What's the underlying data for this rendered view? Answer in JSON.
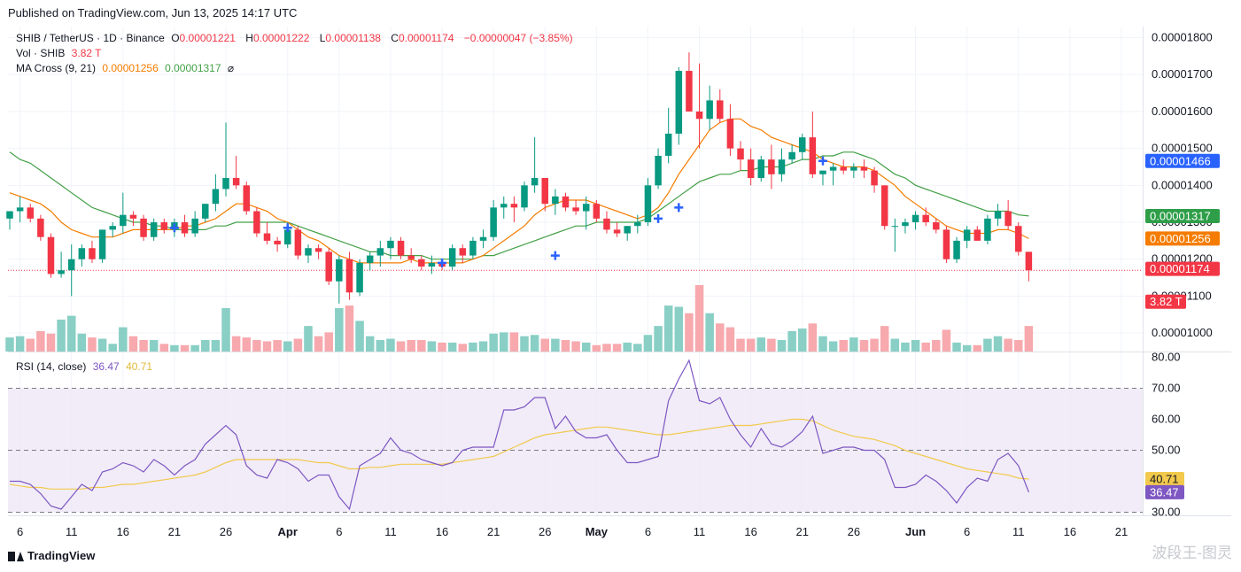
{
  "header": {
    "published": "Published on TradingView.com, Jun 13, 2025 14:17 UTC"
  },
  "legend": {
    "symbol": "SHIB / TetherUS · 1D · Binance",
    "o_label": "O",
    "o_value": "0.00001221",
    "h_label": "H",
    "h_value": "0.00001222",
    "l_label": "L",
    "l_value": "0.00001138",
    "c_label": "C",
    "c_value": "0.00001174",
    "change": "−0.00000047 (−3.85%)",
    "vol_label": "Vol · SHIB",
    "vol_value": "3.82 T",
    "ma_label": "MA Cross (9, 21)",
    "ma_fast": "0.00001256",
    "ma_slow": "0.00001317",
    "ma_symbol": "⌀",
    "rsi_label": "RSI (14, close)",
    "rsi_value": "36.47",
    "rsi_ma_value": "40.71"
  },
  "footer": {
    "logo_text": "TradingView",
    "watermark": "波段王-图灵"
  },
  "colors": {
    "up": "#089981",
    "down": "#f23645",
    "ma_fast": "#f57c00",
    "ma_slow": "#43a047",
    "cross": "#2962ff",
    "rsi": "#7e57c2",
    "rsi_ma": "#f2c94c",
    "rsi_band": "#ede7f6",
    "price_badge": "#f23645",
    "last_ma_slow_badge": "#2e9e48",
    "last_ma_fast_badge": "#f57c00",
    "mark_badge": "#2962ff"
  },
  "chart_data": {
    "type": "candlestick",
    "price_axis": {
      "ticks": [
        "0.00001000",
        "0.00001100",
        "0.00001200",
        "0.00001300",
        "0.00001400",
        "0.00001500",
        "0.00001600",
        "0.00001700",
        "0.00001800"
      ],
      "tick_values": [
        1.0,
        1.1,
        1.2,
        1.3,
        1.4,
        1.5,
        1.6,
        1.7,
        1.8
      ],
      "unit_scale": "1e-5",
      "range": [
        0.95,
        1.83
      ]
    },
    "rsi_axis": {
      "ticks": [
        "30.00",
        "40.00",
        "50.00",
        "60.00",
        "70.00",
        "80.00"
      ],
      "tick_values": [
        30,
        40,
        50,
        60,
        70,
        80
      ],
      "range": [
        29,
        81
      ],
      "band": [
        30,
        70
      ]
    },
    "badges": [
      {
        "label": "0.00001466",
        "value": 1.466,
        "kind": "mark"
      },
      {
        "label": "0.00001317",
        "value": 1.317,
        "kind": "ma_slow"
      },
      {
        "label": "0.00001256",
        "value": 1.256,
        "kind": "ma_fast"
      },
      {
        "label": "0.00001174",
        "value": 1.174,
        "kind": "price"
      },
      {
        "label": "3.82 T",
        "value": 1.085,
        "kind": "volume"
      }
    ],
    "rsi_badges": [
      {
        "label": "40.71",
        "value": 40.71,
        "kind": "rsi_ma"
      },
      {
        "label": "36.47",
        "value": 36.47,
        "kind": "rsi"
      }
    ],
    "x_ticks": [
      {
        "label": "6",
        "i": 1
      },
      {
        "label": "11",
        "i": 6
      },
      {
        "label": "16",
        "i": 11
      },
      {
        "label": "21",
        "i": 16
      },
      {
        "label": "26",
        "i": 21
      },
      {
        "label": "Apr",
        "i": 27,
        "bold": true
      },
      {
        "label": "6",
        "i": 32
      },
      {
        "label": "11",
        "i": 37
      },
      {
        "label": "16",
        "i": 42
      },
      {
        "label": "21",
        "i": 47
      },
      {
        "label": "26",
        "i": 52
      },
      {
        "label": "May",
        "i": 57,
        "bold": true
      },
      {
        "label": "6",
        "i": 62
      },
      {
        "label": "11",
        "i": 67
      },
      {
        "label": "16",
        "i": 72
      },
      {
        "label": "21",
        "i": 77
      },
      {
        "label": "26",
        "i": 82
      },
      {
        "label": "Jun",
        "i": 88,
        "bold": true
      },
      {
        "label": "6",
        "i": 93
      },
      {
        "label": "11",
        "i": 98
      },
      {
        "label": "16",
        "i": 103
      },
      {
        "label": "21",
        "i": 108
      }
    ],
    "ohlc": [
      [
        1.31,
        1.33,
        1.28,
        1.33
      ],
      [
        1.33,
        1.37,
        1.3,
        1.34
      ],
      [
        1.34,
        1.35,
        1.3,
        1.31
      ],
      [
        1.31,
        1.32,
        1.25,
        1.26
      ],
      [
        1.26,
        1.27,
        1.15,
        1.16
      ],
      [
        1.16,
        1.22,
        1.15,
        1.17
      ],
      [
        1.17,
        1.24,
        1.1,
        1.2
      ],
      [
        1.2,
        1.24,
        1.18,
        1.23
      ],
      [
        1.23,
        1.25,
        1.19,
        1.2
      ],
      [
        1.2,
        1.28,
        1.19,
        1.28
      ],
      [
        1.28,
        1.3,
        1.26,
        1.29
      ],
      [
        1.29,
        1.38,
        1.27,
        1.32
      ],
      [
        1.32,
        1.33,
        1.29,
        1.31
      ],
      [
        1.31,
        1.32,
        1.25,
        1.26
      ],
      [
        1.26,
        1.31,
        1.25,
        1.3
      ],
      [
        1.3,
        1.31,
        1.27,
        1.28
      ],
      [
        1.28,
        1.31,
        1.26,
        1.3
      ],
      [
        1.3,
        1.32,
        1.26,
        1.27
      ],
      [
        1.27,
        1.33,
        1.26,
        1.31
      ],
      [
        1.31,
        1.35,
        1.3,
        1.35
      ],
      [
        1.35,
        1.43,
        1.33,
        1.39
      ],
      [
        1.39,
        1.57,
        1.37,
        1.42
      ],
      [
        1.42,
        1.48,
        1.39,
        1.4
      ],
      [
        1.4,
        1.41,
        1.32,
        1.33
      ],
      [
        1.33,
        1.34,
        1.26,
        1.27
      ],
      [
        1.27,
        1.3,
        1.24,
        1.25
      ],
      [
        1.25,
        1.26,
        1.22,
        1.24
      ],
      [
        1.24,
        1.3,
        1.23,
        1.28
      ],
      [
        1.28,
        1.29,
        1.2,
        1.21
      ],
      [
        1.21,
        1.24,
        1.19,
        1.23
      ],
      [
        1.23,
        1.24,
        1.2,
        1.22
      ],
      [
        1.22,
        1.23,
        1.13,
        1.14
      ],
      [
        1.14,
        1.21,
        1.08,
        1.2
      ],
      [
        1.2,
        1.22,
        1.09,
        1.11
      ],
      [
        1.11,
        1.2,
        1.1,
        1.19
      ],
      [
        1.19,
        1.22,
        1.17,
        1.21
      ],
      [
        1.21,
        1.25,
        1.18,
        1.23
      ],
      [
        1.23,
        1.26,
        1.2,
        1.25
      ],
      [
        1.25,
        1.26,
        1.2,
        1.21
      ],
      [
        1.21,
        1.23,
        1.19,
        1.2
      ],
      [
        1.2,
        1.21,
        1.17,
        1.18
      ],
      [
        1.18,
        1.21,
        1.16,
        1.19
      ],
      [
        1.19,
        1.2,
        1.17,
        1.18
      ],
      [
        1.18,
        1.24,
        1.17,
        1.23
      ],
      [
        1.23,
        1.24,
        1.19,
        1.21
      ],
      [
        1.21,
        1.26,
        1.2,
        1.25
      ],
      [
        1.25,
        1.28,
        1.23,
        1.26
      ],
      [
        1.26,
        1.36,
        1.25,
        1.34
      ],
      [
        1.34,
        1.37,
        1.31,
        1.35
      ],
      [
        1.35,
        1.37,
        1.3,
        1.34
      ],
      [
        1.34,
        1.41,
        1.33,
        1.4
      ],
      [
        1.4,
        1.53,
        1.38,
        1.42
      ],
      [
        1.42,
        1.42,
        1.33,
        1.35
      ],
      [
        1.35,
        1.39,
        1.32,
        1.37
      ],
      [
        1.37,
        1.38,
        1.33,
        1.34
      ],
      [
        1.34,
        1.36,
        1.32,
        1.33
      ],
      [
        1.33,
        1.37,
        1.28,
        1.35
      ],
      [
        1.35,
        1.36,
        1.3,
        1.31
      ],
      [
        1.31,
        1.33,
        1.27,
        1.28
      ],
      [
        1.28,
        1.3,
        1.26,
        1.27
      ],
      [
        1.27,
        1.29,
        1.25,
        1.29
      ],
      [
        1.29,
        1.32,
        1.27,
        1.3
      ],
      [
        1.3,
        1.42,
        1.29,
        1.4
      ],
      [
        1.4,
        1.5,
        1.39,
        1.48
      ],
      [
        1.48,
        1.61,
        1.46,
        1.54
      ],
      [
        1.54,
        1.72,
        1.51,
        1.71
      ],
      [
        1.71,
        1.76,
        1.6,
        1.6
      ],
      [
        1.6,
        1.73,
        1.5,
        1.58
      ],
      [
        1.58,
        1.67,
        1.55,
        1.63
      ],
      [
        1.63,
        1.66,
        1.57,
        1.58
      ],
      [
        1.58,
        1.62,
        1.48,
        1.5
      ],
      [
        1.5,
        1.52,
        1.44,
        1.47
      ],
      [
        1.47,
        1.5,
        1.4,
        1.42
      ],
      [
        1.42,
        1.48,
        1.41,
        1.47
      ],
      [
        1.47,
        1.51,
        1.39,
        1.43
      ],
      [
        1.43,
        1.5,
        1.41,
        1.47
      ],
      [
        1.47,
        1.51,
        1.46,
        1.49
      ],
      [
        1.49,
        1.54,
        1.47,
        1.53
      ],
      [
        1.53,
        1.6,
        1.42,
        1.43
      ],
      [
        1.43,
        1.44,
        1.4,
        1.44
      ],
      [
        1.44,
        1.46,
        1.4,
        1.45
      ],
      [
        1.45,
        1.47,
        1.43,
        1.44
      ],
      [
        1.44,
        1.46,
        1.42,
        1.45
      ],
      [
        1.45,
        1.47,
        1.42,
        1.44
      ],
      [
        1.44,
        1.45,
        1.38,
        1.4
      ],
      [
        1.4,
        1.4,
        1.28,
        1.29
      ],
      [
        1.29,
        1.31,
        1.22,
        1.29
      ],
      [
        1.29,
        1.31,
        1.27,
        1.3
      ],
      [
        1.3,
        1.33,
        1.28,
        1.32
      ],
      [
        1.32,
        1.34,
        1.29,
        1.3
      ],
      [
        1.3,
        1.31,
        1.27,
        1.28
      ],
      [
        1.28,
        1.29,
        1.19,
        1.2
      ],
      [
        1.2,
        1.26,
        1.19,
        1.25
      ],
      [
        1.25,
        1.29,
        1.23,
        1.28
      ],
      [
        1.28,
        1.29,
        1.25,
        1.25
      ],
      [
        1.25,
        1.32,
        1.24,
        1.31
      ],
      [
        1.31,
        1.35,
        1.29,
        1.33
      ],
      [
        1.33,
        1.36,
        1.28,
        1.29
      ],
      [
        1.29,
        1.3,
        1.21,
        1.22
      ],
      [
        1.22,
        1.22,
        1.14,
        1.17
      ]
    ],
    "volume": [
      0.55,
      0.6,
      0.5,
      0.8,
      0.7,
      1.25,
      1.4,
      0.7,
      0.55,
      0.5,
      0.3,
      0.95,
      0.6,
      0.45,
      0.45,
      0.3,
      0.25,
      0.25,
      0.25,
      0.45,
      0.45,
      1.7,
      0.6,
      0.55,
      0.45,
      0.4,
      0.45,
      0.4,
      0.5,
      1.0,
      0.6,
      0.75,
      1.7,
      1.8,
      1.2,
      0.6,
      0.45,
      0.5,
      0.4,
      0.45,
      0.45,
      0.4,
      0.35,
      0.35,
      0.3,
      0.35,
      0.4,
      0.7,
      0.75,
      0.75,
      0.6,
      0.65,
      0.5,
      0.5,
      0.45,
      0.4,
      0.35,
      0.25,
      0.3,
      0.3,
      0.35,
      0.3,
      0.65,
      1.0,
      1.8,
      1.75,
      1.5,
      2.6,
      1.5,
      1.1,
      0.95,
      0.5,
      0.5,
      0.55,
      0.5,
      0.45,
      0.8,
      0.9,
      1.1,
      0.6,
      0.4,
      0.45,
      0.55,
      0.45,
      0.5,
      1.0,
      0.5,
      0.35,
      0.45,
      0.35,
      0.45,
      0.85,
      0.35,
      0.25,
      0.25,
      0.5,
      0.6,
      0.5,
      0.45,
      1.0
    ],
    "ma_fast": [
      1.38,
      1.37,
      1.36,
      1.35,
      1.33,
      1.3,
      1.28,
      1.27,
      1.26,
      1.26,
      1.26,
      1.27,
      1.28,
      1.28,
      1.28,
      1.28,
      1.28,
      1.29,
      1.29,
      1.3,
      1.31,
      1.33,
      1.35,
      1.35,
      1.34,
      1.33,
      1.31,
      1.3,
      1.28,
      1.26,
      1.25,
      1.23,
      1.21,
      1.2,
      1.19,
      1.19,
      1.19,
      1.19,
      1.19,
      1.2,
      1.19,
      1.19,
      1.19,
      1.19,
      1.19,
      1.2,
      1.21,
      1.23,
      1.25,
      1.27,
      1.29,
      1.32,
      1.34,
      1.35,
      1.36,
      1.36,
      1.36,
      1.35,
      1.34,
      1.33,
      1.32,
      1.31,
      1.32,
      1.34,
      1.38,
      1.43,
      1.47,
      1.51,
      1.55,
      1.57,
      1.58,
      1.58,
      1.56,
      1.55,
      1.53,
      1.52,
      1.51,
      1.5,
      1.49,
      1.47,
      1.46,
      1.45,
      1.45,
      1.45,
      1.44,
      1.42,
      1.4,
      1.37,
      1.35,
      1.33,
      1.31,
      1.29,
      1.28,
      1.27,
      1.27,
      1.27,
      1.28,
      1.28,
      1.27,
      1.256
    ],
    "ma_slow": [
      1.49,
      1.47,
      1.46,
      1.44,
      1.42,
      1.4,
      1.38,
      1.36,
      1.34,
      1.33,
      1.32,
      1.31,
      1.3,
      1.3,
      1.29,
      1.29,
      1.28,
      1.28,
      1.28,
      1.28,
      1.29,
      1.29,
      1.3,
      1.3,
      1.3,
      1.3,
      1.3,
      1.3,
      1.29,
      1.28,
      1.27,
      1.26,
      1.25,
      1.24,
      1.23,
      1.22,
      1.22,
      1.21,
      1.21,
      1.21,
      1.21,
      1.2,
      1.2,
      1.2,
      1.2,
      1.2,
      1.21,
      1.21,
      1.22,
      1.23,
      1.24,
      1.25,
      1.26,
      1.27,
      1.28,
      1.29,
      1.29,
      1.3,
      1.3,
      1.3,
      1.3,
      1.3,
      1.31,
      1.33,
      1.35,
      1.37,
      1.39,
      1.41,
      1.42,
      1.43,
      1.43,
      1.44,
      1.44,
      1.45,
      1.45,
      1.45,
      1.46,
      1.47,
      1.47,
      1.48,
      1.48,
      1.49,
      1.49,
      1.48,
      1.47,
      1.45,
      1.43,
      1.42,
      1.4,
      1.39,
      1.38,
      1.37,
      1.36,
      1.35,
      1.34,
      1.33,
      1.33,
      1.33,
      1.32,
      1.317
    ],
    "cross_markers": [
      [
        16,
        1.285
      ],
      [
        27,
        1.285
      ],
      [
        42,
        1.19
      ],
      [
        53,
        1.21
      ],
      [
        63,
        1.31
      ],
      [
        65,
        1.34
      ],
      [
        79,
        1.466
      ]
    ],
    "rsi": [
      40,
      40,
      39,
      36,
      32,
      31,
      35,
      39,
      37,
      43,
      44,
      46,
      45,
      43,
      47,
      45,
      42,
      45,
      47,
      52,
      55,
      58,
      55,
      45,
      42,
      41,
      47,
      46,
      44,
      40,
      42,
      42,
      35,
      31,
      45,
      47,
      49,
      54,
      50,
      49,
      47,
      46,
      45,
      46,
      50,
      51,
      51,
      51,
      63,
      63,
      64,
      67,
      67,
      57,
      61,
      56,
      54,
      54,
      55,
      50,
      46,
      46,
      47,
      48,
      66,
      73,
      79,
      66,
      65,
      67,
      60,
      55,
      51,
      57,
      52,
      51,
      53,
      56,
      61,
      49,
      50,
      51,
      51,
      50,
      50,
      47,
      38,
      38,
      39,
      42,
      40,
      37,
      33,
      38,
      41,
      40,
      47,
      49,
      45,
      36.47
    ],
    "rsi_ma": [
      39,
      38.5,
      38,
      38,
      37.5,
      37.5,
      37.5,
      37.5,
      38,
      38,
      38.5,
      39,
      39,
      39.5,
      40,
      40.5,
      41,
      41.5,
      42,
      43,
      44.5,
      46,
      47,
      47,
      47,
      47,
      47,
      47,
      47,
      46.5,
      46,
      46,
      45,
      44,
      44,
      44.5,
      44.5,
      45,
      45.5,
      45.5,
      45.5,
      45.5,
      45.5,
      46,
      46.5,
      47,
      47.5,
      48,
      49.5,
      51,
      52.5,
      54,
      55,
      55.5,
      56,
      56.5,
      57,
      57.5,
      57.5,
      57,
      56.5,
      56,
      55.5,
      55,
      55,
      55.5,
      56,
      56.5,
      57,
      57.5,
      58,
      58,
      58,
      58.5,
      59,
      59.5,
      60,
      60,
      59.5,
      58,
      56.5,
      55.5,
      54.5,
      54,
      53.5,
      52.5,
      51.5,
      50,
      49,
      48,
      47,
      46,
      45,
      44,
      43.5,
      43,
      42.5,
      42,
      41,
      40.71
    ]
  }
}
